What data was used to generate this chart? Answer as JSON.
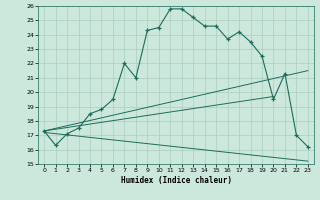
{
  "xlabel": "Humidex (Indice chaleur)",
  "xlim": [
    -0.5,
    23.5
  ],
  "ylim": [
    15,
    26
  ],
  "yticks": [
    15,
    16,
    17,
    18,
    19,
    20,
    21,
    22,
    23,
    24,
    25,
    26
  ],
  "xticks": [
    0,
    1,
    2,
    3,
    4,
    5,
    6,
    7,
    8,
    9,
    10,
    11,
    12,
    13,
    14,
    15,
    16,
    17,
    18,
    19,
    20,
    21,
    22,
    23
  ],
  "bg_color": "#cce8dc",
  "line_color": "#1e6b5a",
  "grid_color": "#aacfbf",
  "line1": {
    "x": [
      0,
      1,
      2,
      3,
      4,
      5,
      6,
      7,
      8,
      9,
      10,
      11,
      12,
      13,
      14,
      15,
      16,
      17,
      18,
      19,
      20,
      21,
      22,
      23
    ],
    "y": [
      17.3,
      16.3,
      17.1,
      17.5,
      18.5,
      18.8,
      19.5,
      22.0,
      21.0,
      24.3,
      24.5,
      25.8,
      25.8,
      25.2,
      24.6,
      24.6,
      23.7,
      24.2,
      23.5,
      22.5,
      19.5,
      21.3,
      17.0,
      16.2
    ]
  },
  "line2": {
    "x": [
      0,
      23
    ],
    "y": [
      17.3,
      21.5
    ]
  },
  "line3": {
    "x": [
      0,
      20
    ],
    "y": [
      17.3,
      19.7
    ]
  },
  "line4": {
    "x": [
      0,
      23
    ],
    "y": [
      17.2,
      15.2
    ]
  }
}
